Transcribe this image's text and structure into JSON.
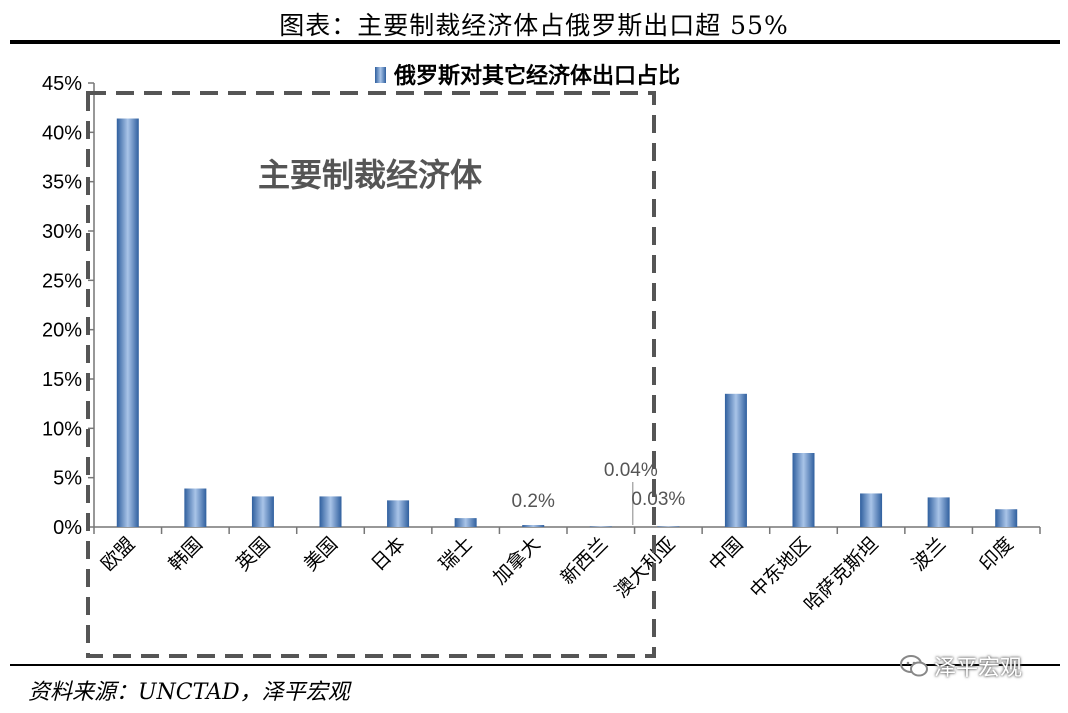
{
  "page": {
    "title": "图表：主要制裁经济体占俄罗斯出口超 55%",
    "source": "资料来源：UNCTAD，泽平宏观",
    "watermark": "泽平宏观"
  },
  "chart_data": {
    "type": "bar",
    "categories": [
      "欧盟",
      "韩国",
      "英国",
      "美国",
      "日本",
      "瑞士",
      "加拿大",
      "新西兰",
      "澳大利亚",
      "中国",
      "中东地区",
      "哈萨克斯坦",
      "波兰",
      "印度"
    ],
    "series": [
      {
        "name": "俄罗斯对其它经济体出口占比",
        "values": [
          41.4,
          3.9,
          3.1,
          3.1,
          2.7,
          0.9,
          0.2,
          0.04,
          0.03,
          13.5,
          7.5,
          3.4,
          3.0,
          1.8
        ]
      }
    ],
    "data_labels": [
      {
        "category": "加拿大",
        "text": "0.2%"
      },
      {
        "category": "新西兰",
        "text": "0.04%"
      },
      {
        "category": "澳大利亚",
        "text": "0.03%"
      }
    ],
    "y_ticks": [
      "0%",
      "5%",
      "10%",
      "15%",
      "20%",
      "25%",
      "30%",
      "35%",
      "40%",
      "45%"
    ],
    "ylim": [
      0,
      45
    ],
    "grid": false,
    "legend_position": "top",
    "annotation": {
      "text": "主要制裁经济体",
      "group": [
        "欧盟",
        "韩国",
        "英国",
        "美国",
        "日本",
        "瑞士",
        "加拿大",
        "新西兰",
        "澳大利亚"
      ]
    },
    "colors": {
      "bar_dark": "#2f5f9e",
      "bar_light": "#a9c4e8"
    }
  }
}
